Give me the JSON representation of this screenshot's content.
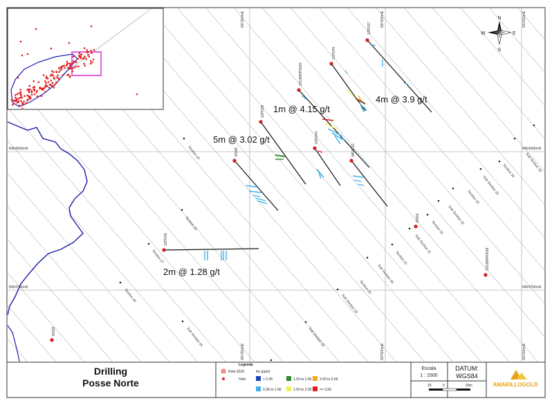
{
  "map": {
    "grid_labels": {
      "top": [
        "697350mE",
        "697500mE",
        "697650mE"
      ],
      "bottom": [
        "697350mE",
        "697500mE",
        "697650mE"
      ],
      "left": [
        "8454900mN",
        "8454750mN"
      ],
      "right": [
        "8454900mN",
        "8454750mN"
      ]
    },
    "sections": [
      "Section 34",
      "Sub Section 34",
      "Section 33",
      "Sub Section 33",
      "Section 32",
      "Sub Section 32",
      "Section 31",
      "Sub Section 31",
      "Section 30",
      "Sub Section 30",
      "Section 29",
      "Sub Section 29",
      "Section 28",
      "Sub Section 28",
      "Section 27",
      "Section 26",
      "Sub Section 26"
    ],
    "holes": [
      "12PO37",
      "12PO45",
      "2012MRP0030",
      "12PO38",
      "12PO44",
      "MRC-12",
      "12PO46",
      "W006",
      "W001",
      "2012MRP0028",
      "W028"
    ],
    "intercepts": [
      "4m @ 3.9 g/t",
      "1m @ 4.15 g/t",
      "5m @ 3.02 g/t",
      "2m @ 1.28 g/t"
    ],
    "compass": {
      "n": "N",
      "s": "S",
      "e": "E",
      "w": "W"
    }
  },
  "footer": {
    "title_line1": "Drilling",
    "title_line2": "Posse Norte",
    "legend_title": "Legenda",
    "legend_hole2018": "Hole 2018",
    "legend_hole": "Hole",
    "legend_au": "Au (ppm)",
    "legend_classes": [
      "< 0.35",
      "0.35 to 1.00",
      "1.00 to 1.50",
      "1.50 to 2.00",
      "2.00 to 3.00",
      ">= 3.00"
    ],
    "escala_label": "Escala",
    "escala_value": "1 : 1500",
    "datum_label": "DATUM:",
    "datum_value": "WGS84",
    "scale_ticks": [
      "20",
      "0",
      "20m"
    ],
    "logo_text": "AMARILLOGOLD"
  },
  "colors": {
    "lt035": "#1f3fbf",
    "c035_100": "#3fb0e6",
    "c100_150": "#2e8b2e",
    "c150_200": "#f2ee55",
    "c200_300": "#f2a91a",
    "ge300": "#e21d1d",
    "river": "#1a1aa8",
    "hole": "#e21d1d",
    "gold": "#e8a317"
  }
}
